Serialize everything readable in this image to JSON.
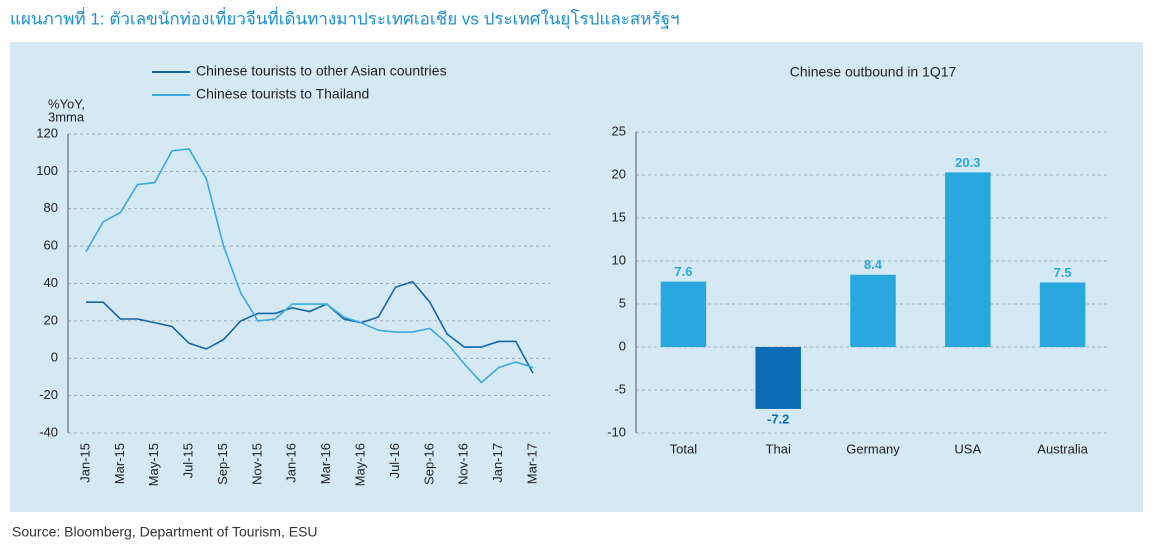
{
  "title": "แผนภาพที่ 1: ตัวเลขนักท่องเที่ยวจีนที่เดินทางมาประเทศเอเชีย vs ประเทศในยุโรปและสหรัฐฯ",
  "source": "Source: Bloomberg, Department of Tourism, ESU",
  "chart_data": [
    {
      "type": "line",
      "y_label": [
        "%YoY,",
        "3mma"
      ],
      "categories": [
        "Jan-15",
        null,
        "Mar-15",
        null,
        "May-15",
        null,
        "Jul-15",
        null,
        "Sep-15",
        null,
        "Nov-15",
        null,
        "Jan-16",
        null,
        "Mar-16",
        null,
        "May-16",
        null,
        "Jul-16",
        null,
        "Sep-16",
        null,
        "Nov-16",
        null,
        "Jan-17",
        null,
        "Mar-17"
      ],
      "series": [
        {
          "name": "Chinese tourists to other Asian countries",
          "color": "#1565a8",
          "values": [
            30,
            30,
            21,
            21,
            19,
            17,
            8,
            5,
            10,
            20,
            24,
            24,
            27,
            25,
            29,
            21,
            19,
            22,
            38,
            41,
            30,
            13,
            6,
            6,
            9,
            9,
            -8
          ]
        },
        {
          "name": "Chinese tourists to Thailand",
          "color": "#3aa9e0",
          "values": [
            57,
            73,
            78,
            93,
            94,
            111,
            112,
            96,
            60,
            35,
            20,
            21,
            29,
            29,
            29,
            22,
            19,
            15,
            14,
            14,
            16,
            8,
            -3,
            -13,
            -5,
            -2,
            -5
          ]
        }
      ],
      "ylim": [
        -40,
        120
      ],
      "yticks": [
        -40,
        -20,
        0,
        20,
        40,
        60,
        80,
        100,
        120
      ],
      "grid": true,
      "legend": "top"
    },
    {
      "type": "bar",
      "title": "Chinese outbound in 1Q17",
      "categories": [
        "Total",
        "Thai",
        "Germany",
        "USA",
        "Australia"
      ],
      "values": [
        7.6,
        -7.2,
        8.4,
        20.3,
        7.5
      ],
      "colors": [
        "#29a8e0",
        "#0a6db3",
        "#29a8e0",
        "#29a8e0",
        "#29a8e0"
      ],
      "ylim": [
        -10,
        25
      ],
      "yticks": [
        -10,
        -5,
        0,
        5,
        10,
        15,
        20,
        25
      ],
      "grid": true
    }
  ]
}
